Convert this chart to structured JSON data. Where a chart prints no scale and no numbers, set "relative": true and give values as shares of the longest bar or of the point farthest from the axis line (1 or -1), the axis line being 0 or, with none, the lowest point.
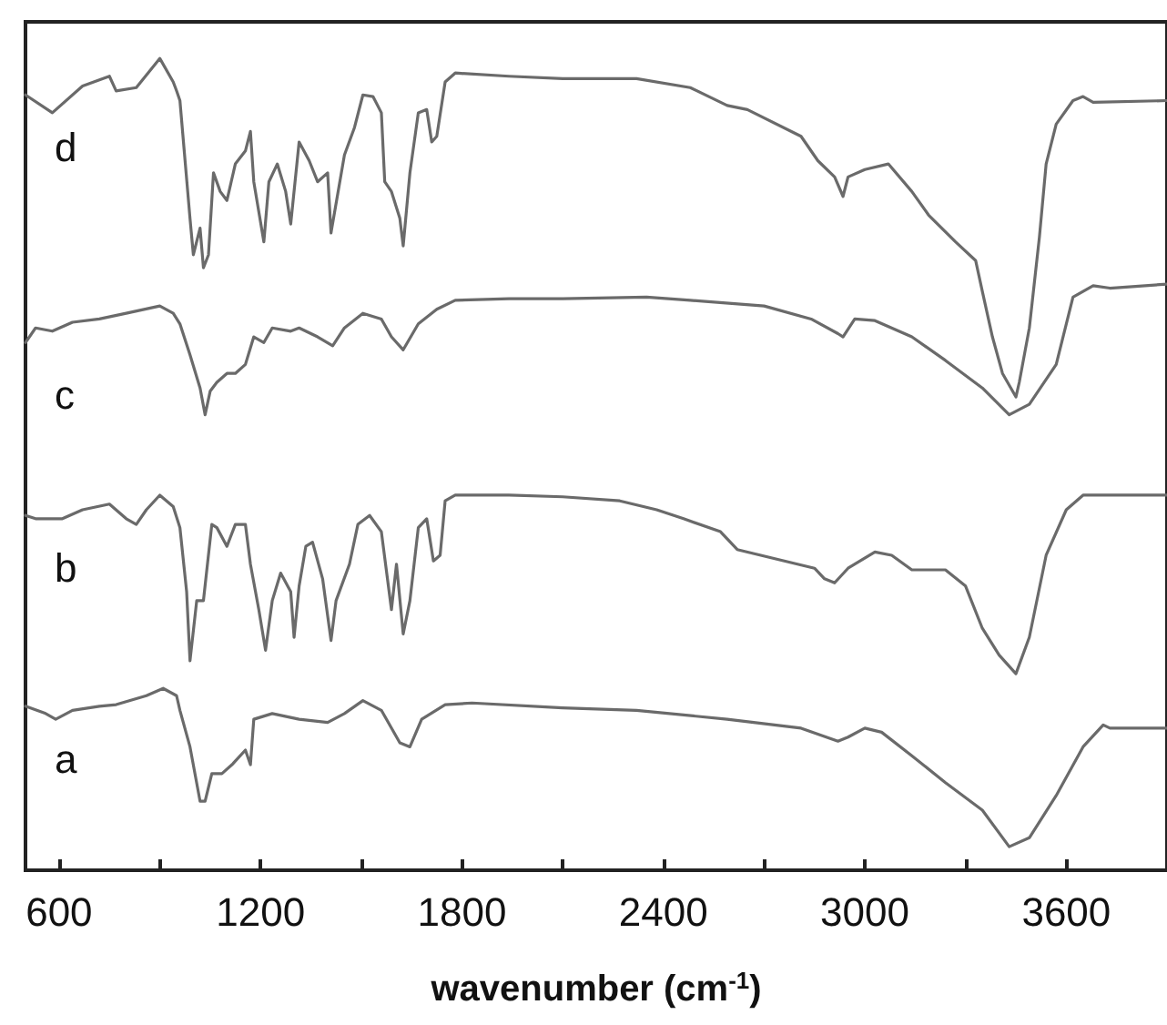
{
  "chart_data": {
    "type": "line",
    "xlabel": "wavenumber (cm$^{-1}$)",
    "relative": true,
    "grid": false,
    "xlim": [
      500,
      3900
    ],
    "xticks": [
      600,
      {
        "value": 900,
        "label": null
      },
      1200,
      {
        "value": 1500,
        "label": null
      },
      1800,
      {
        "value": 2100,
        "label": null
      },
      2400,
      {
        "value": 2700,
        "label": null
      },
      3000,
      {
        "value": 3300,
        "label": null
      },
      3600,
      {
        "value": 3900,
        "label": null
      }
    ],
    "series": [
      {
        "name": "a",
        "color": "#6a6a6a",
        "x": [
          500,
          560,
          590,
          640,
          720,
          770,
          860,
          910,
          950,
          960,
          990,
          1020,
          1035,
          1055,
          1085,
          1115,
          1155,
          1170,
          1180,
          1235,
          1315,
          1400,
          1450,
          1505,
          1560,
          1615,
          1645,
          1680,
          1750,
          1830,
          2100,
          2320,
          2590,
          2810,
          2920,
          2950,
          3000,
          3050,
          3140,
          3240,
          3350,
          3430,
          3490,
          3570,
          3650,
          3710,
          3730,
          3900
        ],
        "values": [
          0.202,
          0.193,
          0.186,
          0.197,
          0.202,
          0.204,
          0.215,
          0.224,
          0.215,
          0.197,
          0.152,
          0.085,
          0.085,
          0.119,
          0.119,
          0.13,
          0.148,
          0.13,
          0.186,
          0.193,
          0.186,
          0.182,
          0.193,
          0.209,
          0.197,
          0.157,
          0.152,
          0.186,
          0.204,
          0.206,
          0.2,
          0.197,
          0.186,
          0.175,
          0.159,
          0.164,
          0.175,
          0.17,
          0.141,
          0.108,
          0.074,
          0.029,
          0.04,
          0.092,
          0.152,
          0.179,
          0.175,
          0.175
        ]
      },
      {
        "name": "b",
        "color": "#6a6a6a",
        "x": [
          500,
          530,
          610,
          670,
          750,
          800,
          830,
          860,
          900,
          940,
          960,
          980,
          990,
          1010,
          1030,
          1055,
          1070,
          1100,
          1125,
          1155,
          1170,
          1195,
          1215,
          1235,
          1260,
          1290,
          1300,
          1315,
          1335,
          1355,
          1385,
          1410,
          1425,
          1465,
          1490,
          1525,
          1560,
          1590,
          1605,
          1625,
          1645,
          1670,
          1695,
          1715,
          1735,
          1750,
          1780,
          1940,
          2100,
          2270,
          2380,
          2460,
          2570,
          2620,
          2850,
          2880,
          2910,
          2950,
          3030,
          3080,
          3140,
          3240,
          3300,
          3350,
          3400,
          3450,
          3490,
          3540,
          3600,
          3650,
          3900
        ],
        "values": [
          0.437,
          0.433,
          0.433,
          0.444,
          0.451,
          0.433,
          0.426,
          0.444,
          0.462,
          0.448,
          0.422,
          0.343,
          0.258,
          0.332,
          0.332,
          0.426,
          0.422,
          0.399,
          0.426,
          0.426,
          0.377,
          0.321,
          0.271,
          0.332,
          0.366,
          0.343,
          0.287,
          0.35,
          0.399,
          0.404,
          0.359,
          0.283,
          0.332,
          0.377,
          0.426,
          0.437,
          0.417,
          0.321,
          0.377,
          0.291,
          0.332,
          0.422,
          0.433,
          0.381,
          0.388,
          0.455,
          0.462,
          0.462,
          0.46,
          0.455,
          0.444,
          0.433,
          0.417,
          0.395,
          0.372,
          0.359,
          0.354,
          0.372,
          0.392,
          0.388,
          0.37,
          0.37,
          0.35,
          0.298,
          0.265,
          0.242,
          0.287,
          0.388,
          0.444,
          0.462,
          0.462
        ]
      },
      {
        "name": "c",
        "color": "#6a6a6a",
        "x": [
          500,
          530,
          580,
          640,
          720,
          800,
          900,
          940,
          960,
          990,
          1020,
          1035,
          1050,
          1070,
          1100,
          1125,
          1155,
          1180,
          1210,
          1235,
          1290,
          1315,
          1370,
          1415,
          1450,
          1505,
          1560,
          1590,
          1625,
          1670,
          1725,
          1780,
          1940,
          2100,
          2350,
          2480,
          2700,
          2840,
          2920,
          2935,
          2970,
          3030,
          3140,
          3240,
          3350,
          3430,
          3490,
          3570,
          3620,
          3680,
          3730,
          3900
        ],
        "values": [
          0.65,
          0.668,
          0.664,
          0.675,
          0.679,
          0.686,
          0.695,
          0.686,
          0.673,
          0.635,
          0.594,
          0.561,
          0.59,
          0.601,
          0.612,
          0.612,
          0.623,
          0.657,
          0.65,
          0.668,
          0.664,
          0.668,
          0.657,
          0.646,
          0.668,
          0.686,
          0.679,
          0.657,
          0.641,
          0.673,
          0.691,
          0.702,
          0.704,
          0.704,
          0.706,
          0.702,
          0.695,
          0.679,
          0.661,
          0.657,
          0.679,
          0.677,
          0.657,
          0.628,
          0.594,
          0.561,
          0.574,
          0.623,
          0.706,
          0.72,
          0.717,
          0.722
        ]
      },
      {
        "name": "d",
        "color": "#6a6a6a",
        "x": [
          500,
          580,
          670,
          750,
          770,
          830,
          900,
          940,
          950,
          960,
          990,
          1000,
          1020,
          1030,
          1045,
          1060,
          1080,
          1100,
          1125,
          1155,
          1170,
          1180,
          1210,
          1225,
          1250,
          1275,
          1290,
          1315,
          1345,
          1370,
          1400,
          1410,
          1425,
          1450,
          1480,
          1505,
          1535,
          1560,
          1570,
          1590,
          1615,
          1625,
          1645,
          1670,
          1695,
          1710,
          1725,
          1750,
          1780,
          1940,
          2100,
          2320,
          2480,
          2590,
          2650,
          2810,
          2860,
          2910,
          2935,
          2950,
          3000,
          3070,
          3140,
          3190,
          3270,
          3330,
          3350,
          3380,
          3410,
          3450,
          3460,
          3490,
          3520,
          3540,
          3570,
          3620,
          3650,
          3680,
          3900
        ],
        "values": [
          0.955,
          0.933,
          0.966,
          0.978,
          0.96,
          0.964,
          1.0,
          0.971,
          0.96,
          0.948,
          0.803,
          0.758,
          0.791,
          0.742,
          0.758,
          0.859,
          0.836,
          0.825,
          0.87,
          0.886,
          0.91,
          0.848,
          0.774,
          0.848,
          0.87,
          0.836,
          0.796,
          0.897,
          0.874,
          0.848,
          0.859,
          0.785,
          0.821,
          0.881,
          0.915,
          0.955,
          0.953,
          0.933,
          0.848,
          0.836,
          0.803,
          0.769,
          0.859,
          0.933,
          0.937,
          0.897,
          0.904,
          0.971,
          0.982,
          0.978,
          0.975,
          0.975,
          0.964,
          0.942,
          0.937,
          0.904,
          0.874,
          0.854,
          0.83,
          0.854,
          0.863,
          0.87,
          0.836,
          0.807,
          0.774,
          0.751,
          0.713,
          0.657,
          0.612,
          0.583,
          0.601,
          0.668,
          0.78,
          0.87,
          0.919,
          0.948,
          0.953,
          0.946,
          0.948
        ]
      }
    ]
  }
}
